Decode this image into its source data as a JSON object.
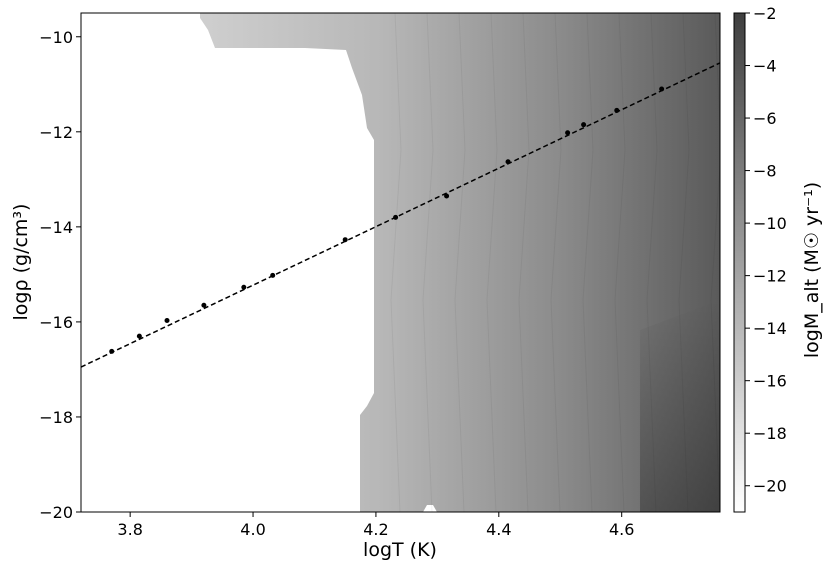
{
  "chart_data": {
    "type": "scatter",
    "xlabel": "logT (K)",
    "ylabel": "logρ (g/cm³)",
    "xlim": [
      3.72,
      4.76
    ],
    "ylim": [
      -20,
      -9.5
    ],
    "xticks": [
      3.8,
      4.0,
      4.2,
      4.4,
      4.6
    ],
    "xtick_labels": [
      "3.8",
      "4.0",
      "4.2",
      "4.4",
      "4.6"
    ],
    "yticks": [
      -10,
      -12,
      -14,
      -16,
      -18,
      -20
    ],
    "ytick_labels": [
      "−10",
      "−12",
      "−14",
      "−16",
      "−18",
      "−20"
    ],
    "series": [
      {
        "style": "points",
        "color": "#000000",
        "x": [
          3.77,
          3.815,
          3.86,
          3.92,
          3.985,
          4.032,
          4.15,
          4.232,
          4.315,
          4.415,
          4.512,
          4.538,
          4.592,
          4.665
        ],
        "y": [
          -16.62,
          -16.3,
          -15.97,
          -15.65,
          -15.27,
          -15.02,
          -14.27,
          -13.8,
          -13.35,
          -12.63,
          -12.02,
          -11.85,
          -11.55,
          -11.1
        ]
      },
      {
        "style": "dashed-fit-line",
        "color": "#000000",
        "x": [
          3.72,
          4.76
        ],
        "y": [
          -16.95,
          -10.55
        ]
      }
    ],
    "background_map": {
      "quantity": "logM_alt",
      "colormap": "gray_r",
      "white_region_note": "no data where logT < ~4.17 (white), gradient increases with logT"
    },
    "colorbar": {
      "label": "logM_alt  (M☉ yr⁻¹)",
      "range": [
        -21,
        -2
      ],
      "ticks": [
        -2,
        -4,
        -6,
        -8,
        -10,
        -12,
        -14,
        -16,
        -18,
        -20
      ],
      "tick_labels": [
        "−2",
        "−4",
        "−6",
        "−8",
        "−10",
        "−12",
        "−14",
        "−16",
        "−18",
        "−20"
      ]
    },
    "grid": false
  }
}
